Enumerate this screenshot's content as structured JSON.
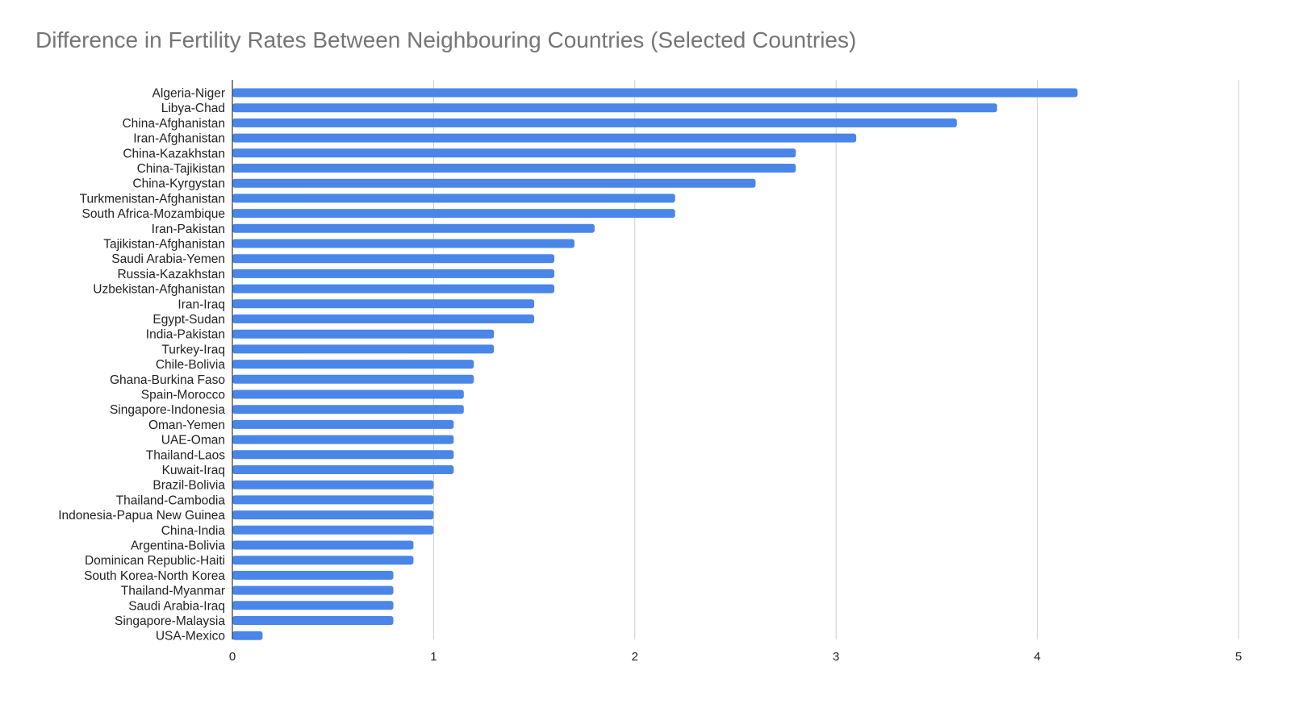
{
  "chart_data": {
    "type": "bar",
    "orientation": "horizontal",
    "title": "Difference in Fertility Rates Between Neighbouring Countries (Selected Countries)",
    "xlabel": "",
    "ylabel": "",
    "xlim": [
      0,
      5
    ],
    "x_ticks": [
      "0",
      "1",
      "2",
      "3",
      "4",
      "5"
    ],
    "grid": true,
    "legend": "none",
    "bar_color": "#4a86e8",
    "categories": [
      "Algeria-Niger",
      "Libya-Chad",
      "China-Afghanistan",
      "Iran-Afghanistan",
      "China-Kazakhstan",
      "China-Tajikistan",
      "China-Kyrgystan",
      "Turkmenistan-Afghanistan",
      "South Africa-Mozambique",
      "Iran-Pakistan",
      "Tajikistan-Afghanistan",
      "Saudi Arabia-Yemen",
      "Russia-Kazakhstan",
      "Uzbekistan-Afghanistan",
      "Iran-Iraq",
      "Egypt-Sudan",
      "India-Pakistan",
      "Turkey-Iraq",
      "Chile-Bolivia",
      "Ghana-Burkina Faso",
      "Spain-Morocco",
      "Singapore-Indonesia",
      "Oman-Yemen",
      "UAE-Oman",
      "Thailand-Laos",
      "Kuwait-Iraq",
      "Brazil-Bolivia",
      "Thailand-Cambodia",
      "Indonesia-Papua New Guinea",
      "China-India",
      "Argentina-Bolivia",
      "Dominican Republic-Haiti",
      "South Korea-North Korea",
      "Thailand-Myanmar",
      "Saudi Arabia-Iraq",
      "Singapore-Malaysia",
      "USA-Mexico"
    ],
    "values": [
      4.2,
      3.8,
      3.6,
      3.1,
      2.8,
      2.8,
      2.6,
      2.2,
      2.2,
      1.8,
      1.7,
      1.6,
      1.6,
      1.6,
      1.5,
      1.5,
      1.3,
      1.3,
      1.2,
      1.2,
      1.15,
      1.15,
      1.1,
      1.1,
      1.1,
      1.1,
      1.0,
      1.0,
      1.0,
      1.0,
      0.9,
      0.9,
      0.8,
      0.8,
      0.8,
      0.8,
      0.15
    ]
  }
}
